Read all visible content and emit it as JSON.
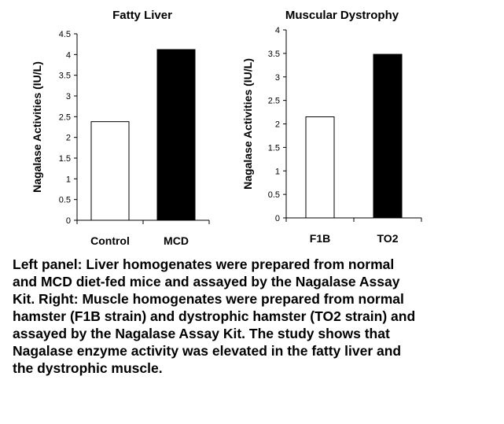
{
  "chart_data": [
    {
      "type": "bar",
      "title": "Fatty Liver",
      "ylabel": "Nagalase Activities (IU/L)",
      "xlabel": "",
      "categories": [
        "Control",
        "MCD"
      ],
      "values": [
        2.38,
        4.12
      ],
      "bar_colors": [
        "#ffffff",
        "#000000"
      ],
      "ylim": [
        0,
        4.5
      ],
      "yticks": [
        "0",
        "0.5",
        "1",
        "1.5",
        "2",
        "2.5",
        "3",
        "3.5",
        "4",
        "4.5"
      ],
      "ytick_values": [
        0,
        0.5,
        1,
        1.5,
        2,
        2.5,
        3,
        3.5,
        4,
        4.5
      ],
      "grid": false,
      "legend": "none"
    },
    {
      "type": "bar",
      "title": "Muscular Dystrophy",
      "ylabel": "Nagalase Activities (IU/L)",
      "xlabel": "",
      "categories": [
        "F1B",
        "TO2"
      ],
      "values": [
        2.15,
        3.48
      ],
      "bar_colors": [
        "#ffffff",
        "#000000"
      ],
      "ylim": [
        0,
        4
      ],
      "yticks": [
        "0",
        "0.5",
        "1",
        "1.5",
        "2",
        "2.5",
        "3",
        "3.5",
        "4"
      ],
      "ytick_values": [
        0,
        0.5,
        1,
        1.5,
        2,
        2.5,
        3,
        3.5,
        4
      ],
      "grid": false,
      "legend": "none"
    }
  ],
  "caption": {
    "lines": [
      "Left panel: Liver homogenates were prepared from normal",
      "and MCD diet-fed mice and assayed by the Nagalase Assay",
      "Kit. Right: Muscle homogenates were prepared from normal",
      "hamster (F1B strain) and dystrophic hamster (TO2 strain) and",
      "assayed by the Nagalase Assay Kit. The study shows that",
      "Nagalase enzyme activity was elevated in the fatty liver and",
      "the dystrophic muscle."
    ]
  }
}
